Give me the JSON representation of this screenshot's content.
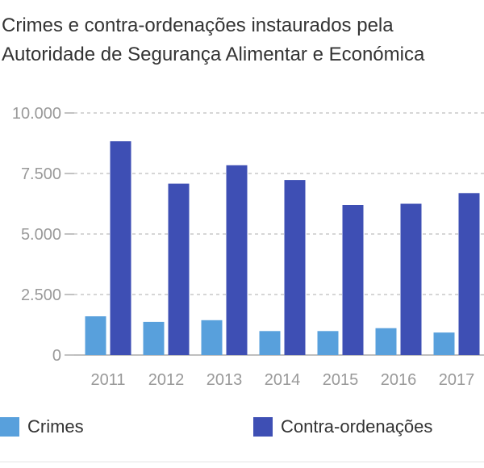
{
  "title_lines": [
    "Crimes e contra-ordenações instaurados pela",
    "Autoridade de Segurança Alimentar e Económica"
  ],
  "colors": {
    "crimes": "#58a0dc",
    "contra": "#3e4fb4",
    "grid": "#bdbdbd",
    "axis": "#999999"
  },
  "chart_data": {
    "type": "bar",
    "title": "Crimes e contra-ordenações instaurados pela Autoridade de Segurança Alimentar e Económica",
    "categories": [
      "2011",
      "2012",
      "2013",
      "2014",
      "2015",
      "2016",
      "2017"
    ],
    "series": [
      {
        "name": "Crimes",
        "values": [
          1600,
          1370,
          1440,
          990,
          990,
          1110,
          930
        ]
      },
      {
        "name": "Contra-ordenações",
        "values": [
          8830,
          7080,
          7840,
          7230,
          6200,
          6250,
          6690
        ]
      }
    ],
    "ylim": [
      0,
      10000
    ],
    "yticks": [
      0,
      2500,
      5000,
      7500,
      10000
    ],
    "ytick_labels": [
      "0",
      "2.500",
      "5.000",
      "7.500",
      "10.000"
    ],
    "xlabel": "",
    "ylabel": "",
    "grid": true,
    "legend_position": "bottom"
  }
}
